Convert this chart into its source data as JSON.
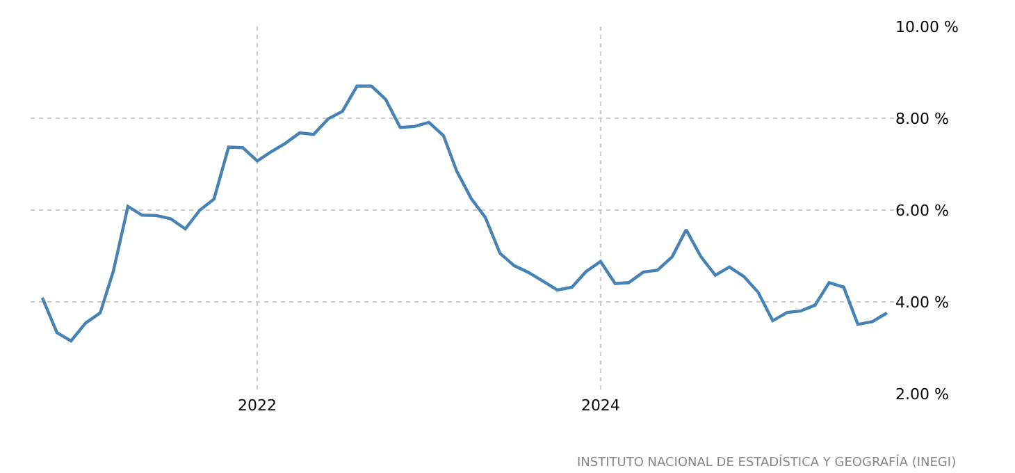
{
  "chart_data": {
    "type": "line",
    "x": [
      "2020-10-01",
      "2020-11-01",
      "2020-12-01",
      "2021-01-01",
      "2021-02-01",
      "2021-03-01",
      "2021-04-01",
      "2021-05-01",
      "2021-06-01",
      "2021-07-01",
      "2021-08-01",
      "2021-09-01",
      "2021-10-01",
      "2021-11-01",
      "2021-12-01",
      "2022-01-01",
      "2022-02-01",
      "2022-03-01",
      "2022-04-01",
      "2022-05-01",
      "2022-06-01",
      "2022-07-01",
      "2022-08-01",
      "2022-09-01",
      "2022-10-01",
      "2022-11-01",
      "2022-12-01",
      "2023-01-01",
      "2023-02-01",
      "2023-03-01",
      "2023-04-01",
      "2023-05-01",
      "2023-06-01",
      "2023-07-01",
      "2023-08-01",
      "2023-09-01",
      "2023-10-01",
      "2023-11-01",
      "2023-12-01",
      "2024-01-01",
      "2024-02-01",
      "2024-03-01",
      "2024-04-01",
      "2024-05-01",
      "2024-06-01",
      "2024-07-01",
      "2024-08-01",
      "2024-09-01",
      "2024-10-01",
      "2024-11-01",
      "2024-12-01",
      "2025-01-01",
      "2025-02-01",
      "2025-03-01",
      "2025-04-01",
      "2025-05-01",
      "2025-06-01",
      "2025-07-01",
      "2025-08-01",
      "2025-09-01"
    ],
    "series": [
      {
        "color": "#4682b4",
        "values": [
          4.09,
          3.33,
          3.15,
          3.54,
          3.76,
          4.67,
          6.08,
          5.89,
          5.88,
          5.81,
          5.59,
          6.0,
          6.24,
          7.37,
          7.36,
          7.07,
          7.28,
          7.45,
          7.68,
          7.65,
          7.99,
          8.15,
          8.7,
          8.7,
          8.41,
          7.8,
          7.82,
          7.91,
          7.62,
          6.85,
          6.25,
          5.84,
          5.06,
          4.79,
          4.64,
          4.45,
          4.26,
          4.32,
          4.66,
          4.88,
          4.4,
          4.42,
          4.65,
          4.69,
          4.98,
          5.57,
          4.99,
          4.58,
          4.76,
          4.55,
          4.21,
          3.59,
          3.77,
          3.8,
          3.93,
          4.42,
          4.32,
          3.51,
          3.57,
          3.76
        ]
      }
    ],
    "xlim": [
      "2020-09-06",
      "2025-09-16"
    ],
    "xticks": [
      {
        "value": "2022-01-01",
        "label": "2022"
      },
      {
        "value": "2024-01-01",
        "label": "2024"
      }
    ],
    "ylim": [
      2,
      10
    ],
    "yticks": [
      {
        "value": 2,
        "label": "2.00 %"
      },
      {
        "value": 4,
        "label": "4.00 %"
      },
      {
        "value": 6,
        "label": "6.00 %"
      },
      {
        "value": 8,
        "label": "8.00 %"
      },
      {
        "value": 10,
        "label": "10.00 %"
      }
    ],
    "grid": true,
    "line_style": "solid",
    "annotations": [
      "INSTITUTO NACIONAL DE ESTADÍSTICA Y GEOGRAFÍA (INEGI)"
    ]
  }
}
